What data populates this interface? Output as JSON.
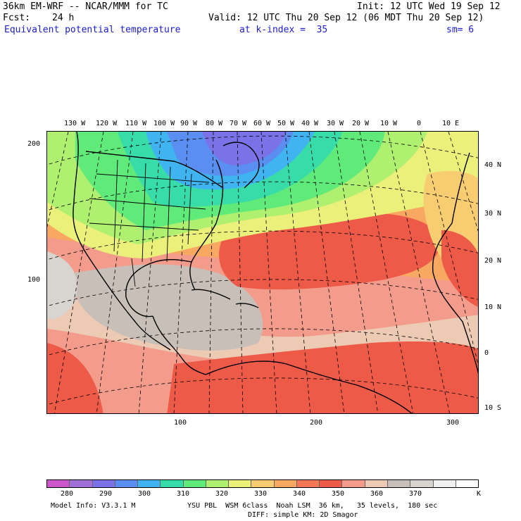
{
  "header": {
    "title_left": "36km EM-WRF -- NCAR/MMM for TC",
    "init": "Init: 12 UTC Wed 19 Sep 12",
    "fcst_label": "Fcst:",
    "fcst_value": "24 h",
    "valid": "Valid: 12 UTC Thu 20 Sep 12 (06 MDT Thu 20 Sep 12)",
    "field_name": "Equivalent potential temperature",
    "level": "at k-index =  35",
    "smooth": "sm= 6"
  },
  "map": {
    "lon_labels": [
      "130 W",
      "120 W",
      "110 W",
      "100 W",
      "90 W",
      "80 W",
      "70 W",
      "60 W",
      "50 W",
      "40 W",
      "30 W",
      "20 W",
      "10 W",
      "0",
      "10 E"
    ],
    "lat_labels": [
      "40 N",
      "30 N",
      "20 N",
      "10 N",
      "0",
      "10 S"
    ],
    "grid_y_labels": [
      "200",
      "100"
    ],
    "grid_x_labels": [
      "100",
      "200",
      "300"
    ]
  },
  "colorbar": {
    "colors": [
      "#cc55cc",
      "#a070d8",
      "#7a72e6",
      "#5a8ef0",
      "#40b4f0",
      "#38dca8",
      "#60ea7a",
      "#b0f070",
      "#eaf07a",
      "#f8cc70",
      "#f8a860",
      "#f27858",
      "#ee5a48",
      "#f49c8c",
      "#eccab4",
      "#c8c0b8",
      "#d8d4d0",
      "#f0f0f0",
      "#ffffff"
    ],
    "tick_labels": [
      "280",
      "290",
      "300",
      "310",
      "320",
      "330",
      "340",
      "350",
      "360",
      "370"
    ],
    "units": "K"
  },
  "footer": {
    "model_info": "Model Info: V3.3.1 M",
    "physics_line1": "YSU PBL  WSM 6class  Noah LSM  36 km,   35 levels,  180 sec",
    "physics_line2": "DIFF: simple KM: 2D Smagor"
  }
}
